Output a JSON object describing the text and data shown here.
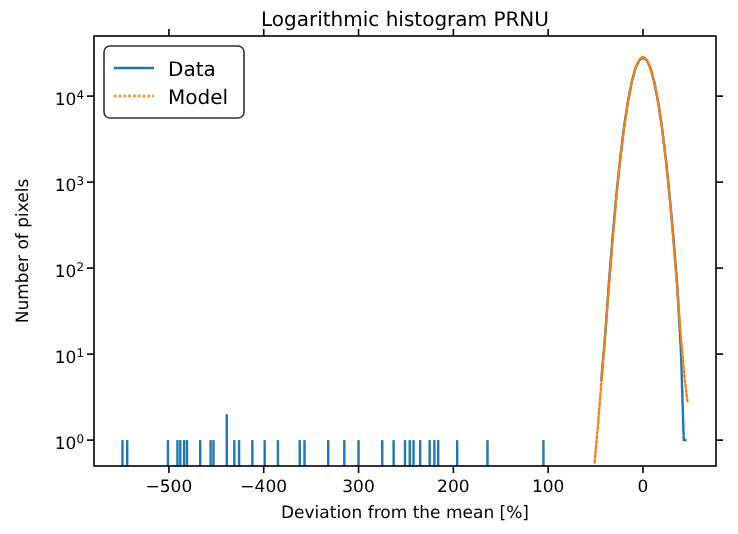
{
  "chart_data": {
    "type": "line",
    "title": "Logarithmic histogram PRNU",
    "xlabel": "Deviation from the mean [%]",
    "ylabel": "Number of pixels",
    "log": "y",
    "legend": "top left",
    "xlim": [
      -579,
      77
    ],
    "xticks": [
      {
        "value": -500,
        "label": "−500"
      },
      {
        "value": -400,
        "label": "−400"
      },
      {
        "value": -300,
        "label": "300"
      },
      {
        "value": -200,
        "label": "200"
      },
      {
        "value": -100,
        "label": "100"
      },
      0
    ],
    "ylim": [
      0.5,
      50000
    ],
    "yticks": [
      {
        "value": 1,
        "label": "10$^{0}$"
      },
      {
        "value": 10,
        "label": "10$^{1}$"
      },
      {
        "value": 100,
        "label": "10$^{2}$"
      },
      {
        "value": 1000,
        "label": "10$^{3}$"
      },
      {
        "value": 10000,
        "label": "10$^{4}$"
      }
    ],
    "series": [
      {
        "type": "bar",
        "color": "#1f77b4",
        "x": [
          -549,
          -544,
          -501,
          -491,
          -488,
          -484,
          -481,
          -467,
          -456,
          -453,
          -439,
          -431,
          -426,
          -412,
          -399,
          -385,
          -362,
          -357,
          -332,
          -315,
          -300,
          -275,
          -263,
          -251,
          -246,
          -242,
          -235,
          -225,
          -220,
          -216,
          -196,
          -164,
          -105
        ],
        "values": [
          1,
          1,
          1,
          1,
          1,
          1,
          1,
          1,
          1,
          1,
          2,
          1,
          1,
          1,
          1,
          1,
          1,
          1,
          1,
          1,
          1,
          1,
          1,
          1,
          1,
          1,
          1,
          1,
          1,
          1,
          1,
          1,
          1
        ]
      },
      {
        "name": "Data",
        "color": "#1f77b4",
        "line_style": "solid",
        "x": [
          -44,
          -40,
          -36,
          -32,
          -28,
          -24,
          -20,
          -16,
          -12,
          -8,
          -4,
          0,
          4,
          8,
          12,
          16,
          20,
          24,
          28,
          32,
          36,
          40,
          43,
          45
        ],
        "values": [
          5,
          16,
          66,
          235,
          720,
          1900,
          4350,
          8500,
          14400,
          20900,
          26200,
          28000,
          26200,
          20900,
          14400,
          8500,
          4350,
          1900,
          720,
          235,
          66,
          11,
          1,
          1
        ]
      },
      {
        "name": "Model",
        "color": "#ff7f0e",
        "line_style": "dotted",
        "x": [
          -51,
          -48,
          -44,
          -40,
          -36,
          -32,
          -28,
          -24,
          -20,
          -16,
          -12,
          -8,
          -4,
          0,
          4,
          8,
          12,
          16,
          20,
          24,
          28,
          32,
          36,
          40,
          44,
          47
        ],
        "values": [
          0.55,
          1.3,
          4.5,
          16,
          60,
          210,
          680,
          1850,
          4300,
          8500,
          14500,
          21000,
          26300,
          29000,
          26300,
          21000,
          14500,
          8500,
          4300,
          1850,
          680,
          210,
          60,
          16,
          5,
          2.8
        ]
      }
    ]
  }
}
